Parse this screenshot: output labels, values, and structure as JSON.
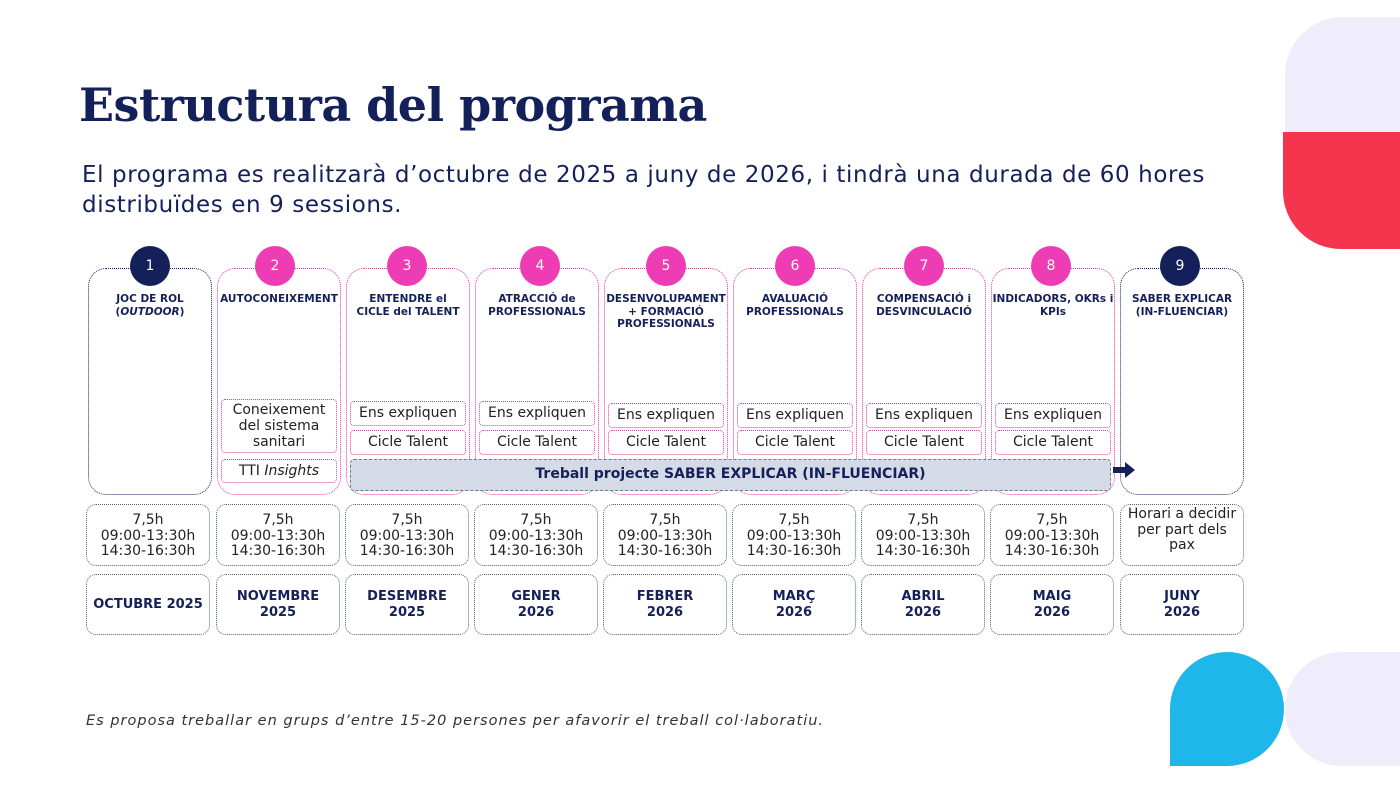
{
  "colors": {
    "navy": "#14205a",
    "pink": "#ee3db4",
    "red": "#f5344e",
    "cyan": "#1fb6ea",
    "lavender": "#efedfb"
  },
  "title": "Estructura del programa",
  "subtitle": "El programa es realitzarà d’octubre de 2025 a juny de 2026, i tindrà una durada de 60 hores distribuïdes en 9 sessions.",
  "sessions": [
    {
      "number": "1",
      "style": "navy",
      "title_pre": "JOC DE ROL (",
      "title_em": "OUTDOOR",
      "title_post": ")"
    },
    {
      "number": "2",
      "style": "pink",
      "title": "AUTOCONEIXEMENT"
    },
    {
      "number": "3",
      "style": "pink",
      "title": "ENTENDRE  el CICLE del TALENT"
    },
    {
      "number": "4",
      "style": "pink",
      "title": "ATRACCIÓ de PROFESSIONALS"
    },
    {
      "number": "5",
      "style": "pink",
      "title": "DESENVOLUPAMENT + FORMACIÓ PROFESSIONALS"
    },
    {
      "number": "6",
      "style": "pink",
      "title": "AVALUACIÓ PROFESSIONALS"
    },
    {
      "number": "7",
      "style": "pink",
      "title": "COMPENSACIÓ i DESVINCULACIÓ"
    },
    {
      "number": "8",
      "style": "pink",
      "title": "INDICADORS, OKRs i KPIs"
    },
    {
      "number": "9",
      "style": "navy",
      "title": "SABER EXPLICAR (IN-FLUENCIAR)"
    }
  ],
  "tags": {
    "s2_knowledge": "Coneixement del sistema sanitari",
    "s2_tti_prefix": "TTI",
    "s2_tti_em": "Insights",
    "explain": "Ens expliquen",
    "cycle": "Cicle Talent"
  },
  "project_bar": "Treball projecte SABER EXPLICAR (IN-FLUENCIAR)",
  "schedule": {
    "hours": "7,5h",
    "morning": "09:00-13:30h",
    "afternoon": "14:30-16:30h",
    "last": "Horari a decidir per part dels pax"
  },
  "months": [
    "OCTUBRE  2025",
    "NOVEMBRE 2025",
    "DESEMBRE 2025",
    "GENER 2026",
    "FEBRER 2026",
    "MARÇ 2026",
    "ABRIL 2026",
    "MAIG 2026",
    "JUNY 2026"
  ],
  "footnote": "Es proposa treballar en grups d’entre 15-20 persones per afavorir el treball col·laboratiu."
}
